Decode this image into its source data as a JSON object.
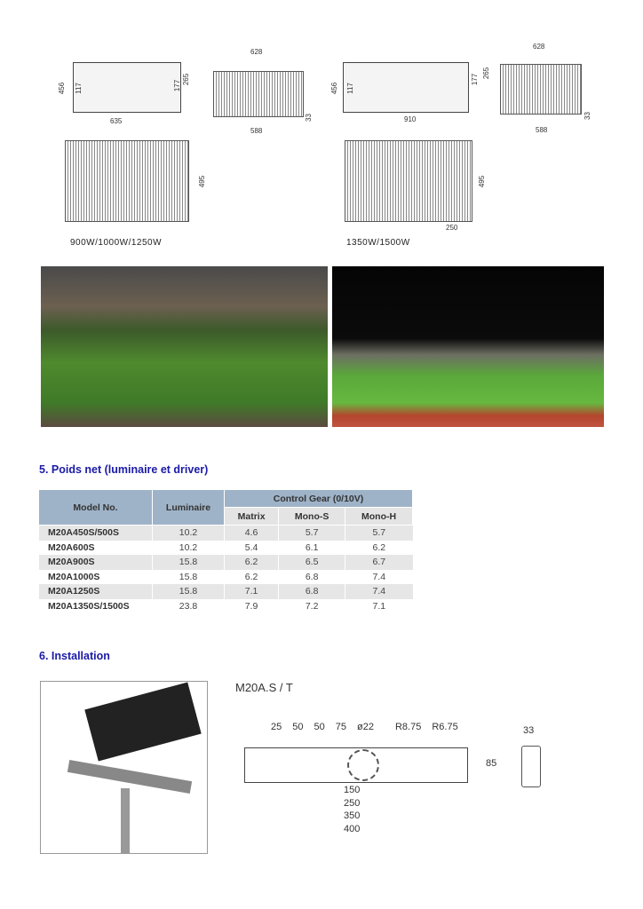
{
  "drawings": [
    {
      "caption": "900W/1000W/1250W",
      "side_dims": [
        "456",
        "117",
        "177",
        "265",
        "635"
      ],
      "front_dims": [
        "628",
        "588",
        "33"
      ],
      "top_dims": [
        "495"
      ]
    },
    {
      "caption": "1350W/1500W",
      "side_dims": [
        "456",
        "117",
        "265",
        "177",
        "910"
      ],
      "front_dims": [
        "628",
        "588",
        "33"
      ],
      "top_dims": [
        "495",
        "250"
      ]
    }
  ],
  "section5": {
    "title": "5. Poids net (luminaire et driver)",
    "headers": {
      "model": "Model No.",
      "luminaire": "Luminaire",
      "control_gear": "Control Gear (0/10V)",
      "matrix": "Matrix",
      "mono_s": "Mono-S",
      "mono_h": "Mono-H"
    },
    "rows": [
      [
        "M20A450S/500S",
        "10.2",
        "4.6",
        "5.7",
        "5.7"
      ],
      [
        "M20A600S",
        "10.2",
        "5.4",
        "6.1",
        "6.2"
      ],
      [
        "M20A900S",
        "15.8",
        "6.2",
        "6.5",
        "6.7"
      ],
      [
        "M20A1000S",
        "15.8",
        "6.2",
        "6.8",
        "7.4"
      ],
      [
        "M20A1250S",
        "15.8",
        "7.1",
        "6.8",
        "7.4"
      ],
      [
        "M20A1350S/1500S",
        "23.8",
        "7.9",
        "7.2",
        "7.1"
      ]
    ]
  },
  "section6": {
    "title": "6. Installation",
    "drawing_title": "M20A.S / T",
    "top_dims": [
      "25",
      "50",
      "50",
      "75",
      "ø22",
      "R8.75",
      "R6.75"
    ],
    "bottom_dims": [
      "150",
      "250",
      "350",
      "400"
    ],
    "height_dim": "85",
    "side_dim": "33"
  }
}
